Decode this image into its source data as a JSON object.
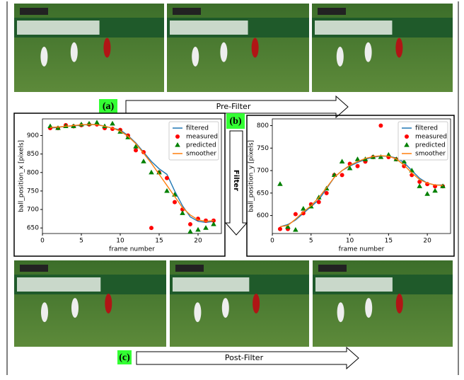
{
  "labels": {
    "a": "(a)",
    "b": "(b)",
    "c": "(c)",
    "pre": "Pre-Filter",
    "filter": "Filter",
    "post": "Post-Filter"
  },
  "chart_data": [
    {
      "type": "line",
      "xlabel": "frame number",
      "ylabel": "ball_position_x [pixels]",
      "x": [
        1,
        2,
        3,
        4,
        5,
        6,
        7,
        8,
        9,
        10,
        11,
        12,
        13,
        14,
        15,
        16,
        17,
        18,
        19,
        20,
        21,
        22
      ],
      "xlim": [
        0,
        23
      ],
      "xticks": [
        0,
        5,
        10,
        15,
        20
      ],
      "ylim": [
        635,
        945
      ],
      "yticks": [
        650,
        700,
        750,
        800,
        850,
        900
      ],
      "legend": "upper right",
      "series": [
        {
          "name": "filtered",
          "color": "#1f77b4",
          "line": true,
          "values": [
            920,
            922,
            925,
            926,
            928,
            930,
            930,
            925,
            920,
            915,
            900,
            880,
            855,
            830,
            810,
            795,
            750,
            710,
            680,
            668,
            665,
            668
          ]
        },
        {
          "name": "measured",
          "color": "#ff0000",
          "marker": "circle",
          "values": [
            920,
            920,
            928,
            925,
            928,
            930,
            930,
            920,
            918,
            915,
            900,
            860,
            855,
            650,
            800,
            785,
            720,
            700,
            660,
            675,
            670,
            670
          ]
        },
        {
          "name": "predicted",
          "color": "#008000",
          "marker": "triangle",
          "values": [
            925,
            920,
            925,
            925,
            930,
            932,
            935,
            925,
            932,
            910,
            895,
            870,
            830,
            800,
            800,
            750,
            740,
            690,
            640,
            645,
            650,
            660
          ]
        },
        {
          "name": "smoother",
          "color": "#ff7f0e",
          "line": true,
          "values": [
            922,
            923,
            925,
            927,
            929,
            930,
            929,
            925,
            920,
            912,
            898,
            878,
            852,
            825,
            795,
            765,
            735,
            705,
            685,
            672,
            668,
            670
          ]
        }
      ]
    },
    {
      "type": "line",
      "xlabel": "frame number",
      "ylabel": "ball_position_y [pixels]",
      "x": [
        1,
        2,
        3,
        4,
        5,
        6,
        7,
        8,
        9,
        10,
        11,
        12,
        13,
        14,
        15,
        16,
        17,
        18,
        19,
        20,
        21,
        22
      ],
      "xlim": [
        0,
        23
      ],
      "xticks": [
        0,
        5,
        10,
        15,
        20
      ],
      "ylim": [
        560,
        815
      ],
      "yticks": [
        600,
        650,
        700,
        750,
        800
      ],
      "legend": "upper right",
      "series": [
        {
          "name": "filtered",
          "color": "#1f77b4",
          "line": true,
          "values": [
            575,
            580,
            590,
            605,
            620,
            635,
            660,
            685,
            700,
            710,
            718,
            725,
            730,
            732,
            732,
            728,
            718,
            700,
            683,
            672,
            668,
            668
          ]
        },
        {
          "name": "measured",
          "color": "#ff0000",
          "marker": "circle",
          "values": [
            570,
            570,
            603,
            605,
            625,
            630,
            650,
            690,
            690,
            715,
            710,
            720,
            730,
            800,
            730,
            725,
            710,
            690,
            675,
            670,
            665,
            665
          ]
        },
        {
          "name": "predicted",
          "color": "#008000",
          "marker": "triangle",
          "values": [
            670,
            575,
            568,
            615,
            620,
            640,
            660,
            690,
            720,
            705,
            725,
            725,
            730,
            730,
            735,
            725,
            720,
            700,
            665,
            648,
            655,
            665
          ]
        },
        {
          "name": "smoother",
          "color": "#ff7f0e",
          "line": true,
          "values": [
            575,
            578,
            592,
            608,
            622,
            640,
            662,
            685,
            700,
            712,
            720,
            727,
            731,
            733,
            732,
            726,
            712,
            695,
            680,
            672,
            668,
            667
          ]
        }
      ]
    }
  ]
}
